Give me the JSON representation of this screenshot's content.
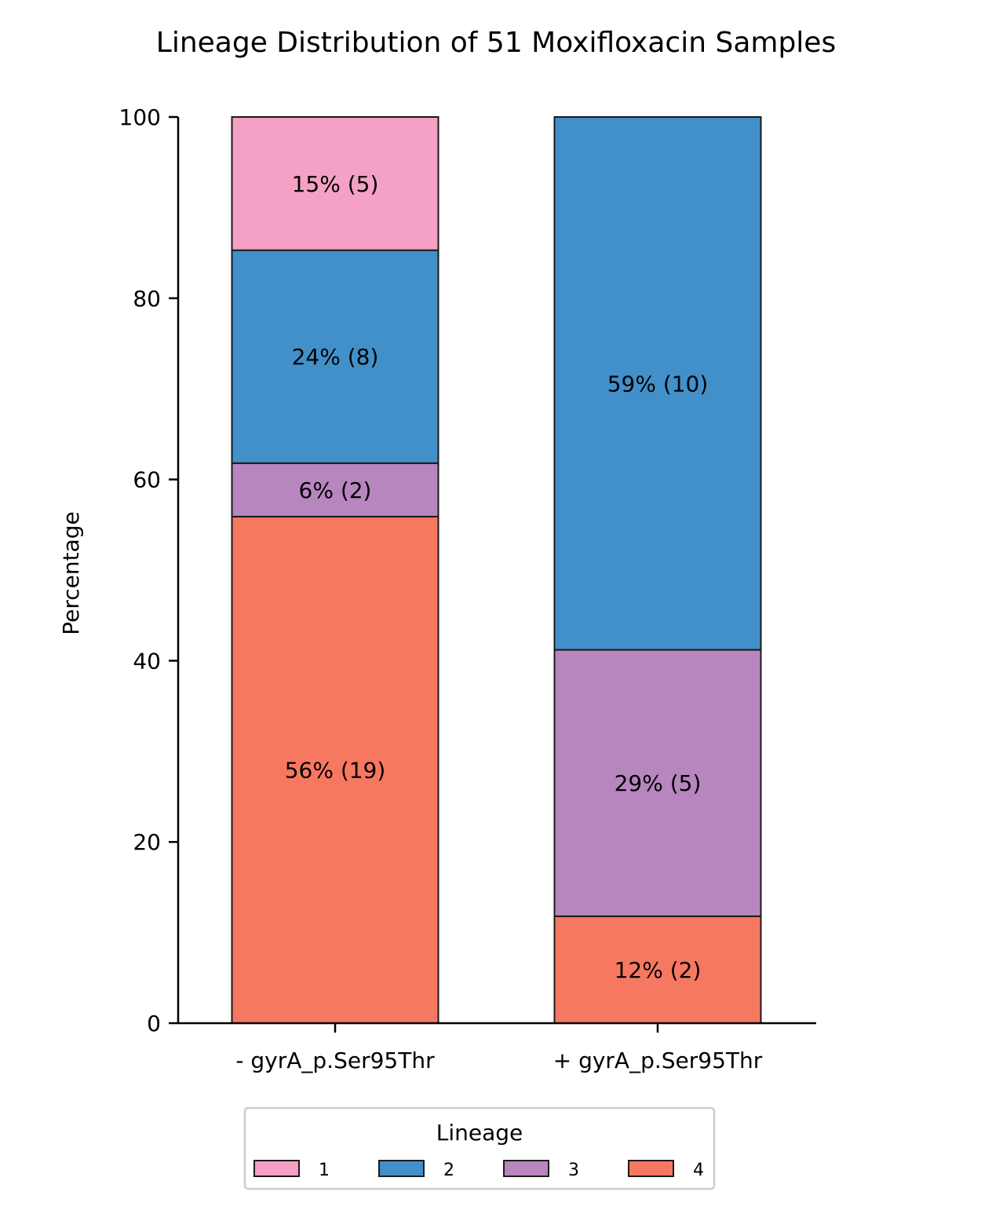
{
  "chart_data": {
    "type": "bar",
    "stacked": true,
    "title": "Lineage Distribution of 51 Moxifloxacin Samples",
    "xlabel": "",
    "ylabel": "Percentage",
    "ylim": [
      0,
      100
    ],
    "yticks": [
      0,
      20,
      40,
      60,
      80,
      100
    ],
    "categories": [
      "- gyrA_p.Ser95Thr",
      "+ gyrA_p.Ser95Thr"
    ],
    "series": [
      {
        "name": "4",
        "color": "#F77861",
        "values": [
          55.9,
          11.8
        ],
        "labels": [
          "56% (19)",
          "12% (2)"
        ]
      },
      {
        "name": "3",
        "color": "#B886BF",
        "values": [
          5.9,
          29.4
        ],
        "labels": [
          "6% (2)",
          "29% (5)"
        ]
      },
      {
        "name": "2",
        "color": "#4190CA",
        "values": [
          23.5,
          58.8
        ],
        "labels": [
          "24% (8)",
          "59% (10)"
        ]
      },
      {
        "name": "1",
        "color": "#F5A0C5",
        "values": [
          14.7,
          0
        ],
        "labels": [
          "15% (5)",
          ""
        ]
      }
    ],
    "legend": {
      "title": "Lineage",
      "position": "bottom-center",
      "entries": [
        "1",
        "2",
        "3",
        "4"
      ]
    },
    "grid": false
  }
}
